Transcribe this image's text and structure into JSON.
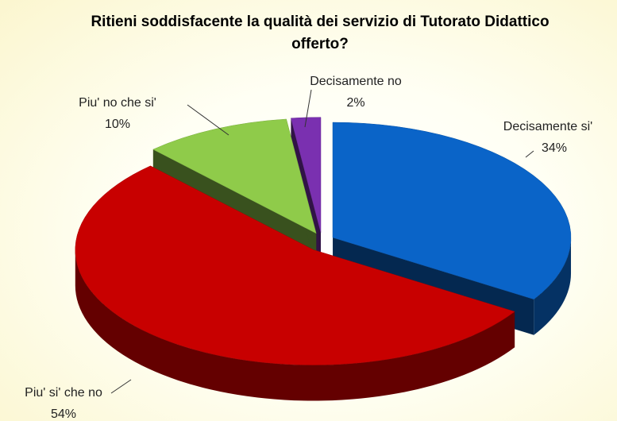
{
  "chart_data": {
    "type": "pie3d",
    "title": "Ritieni soddisfacente la qualità dei servizio di Tutorato Didattico offerto?",
    "categories": [
      "Decisamente si'",
      "Piu' si' che no",
      "Piu' no che si'",
      "Decisamente no"
    ],
    "values": [
      34,
      54,
      10,
      2
    ],
    "value_labels": [
      "34%",
      "54%",
      "10%",
      "2%"
    ],
    "colors": [
      "#0a64c8",
      "#c80000",
      "#8fcb4a",
      "#7a30b0"
    ],
    "exploded": true
  }
}
